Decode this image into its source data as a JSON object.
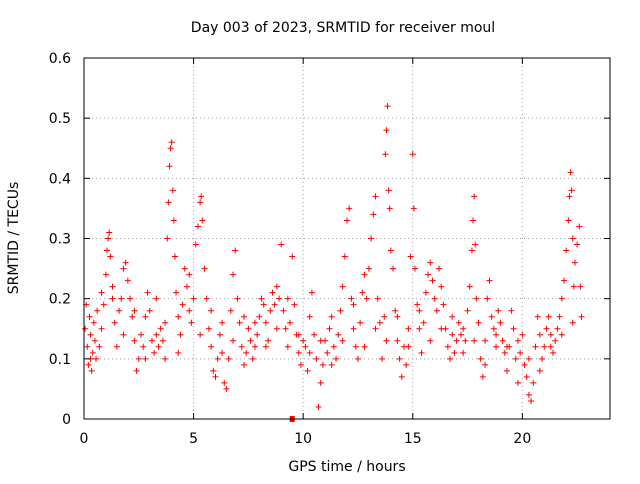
{
  "chart_data": {
    "type": "scatter",
    "title": "Day 003 of 2023, SRMTID for receiver moul",
    "xlabel": "GPS time / hours",
    "ylabel": "SRMTID / TECUs",
    "xlim": [
      0,
      24
    ],
    "ylim": [
      0,
      0.6
    ],
    "xticks": [
      0,
      5,
      10,
      15,
      20
    ],
    "xtick_labels": [
      "0",
      "5",
      "10",
      "15",
      "20"
    ],
    "yticks": [
      0,
      0.1,
      0.2,
      0.3,
      0.4,
      0.5,
      0.6
    ],
    "ytick_labels": [
      "0",
      "0.1",
      "0.2",
      "0.3",
      "0.4",
      "0.5",
      "0.6"
    ],
    "grid": true,
    "legend": "none",
    "marker": "plus",
    "color": "#ff0000",
    "series": [
      {
        "name": "SRMTID",
        "points": [
          [
            0.05,
            0.15
          ],
          [
            0.1,
            0.19
          ],
          [
            0.15,
            0.12
          ],
          [
            0.2,
            0.09
          ],
          [
            0.25,
            0.17
          ],
          [
            0.3,
            0.14
          ],
          [
            0.35,
            0.08
          ],
          [
            0.4,
            0.11
          ],
          [
            0.45,
            0.16
          ],
          [
            0.5,
            0.13
          ],
          [
            0.55,
            0.1
          ],
          [
            0.6,
            0.18
          ],
          [
            0.7,
            0.12
          ],
          [
            0.8,
            0.21
          ],
          [
            0.9,
            0.19
          ],
          [
            1.0,
            0.24
          ],
          [
            1.05,
            0.28
          ],
          [
            1.1,
            0.3
          ],
          [
            1.15,
            0.31
          ],
          [
            1.2,
            0.27
          ],
          [
            1.3,
            0.22
          ],
          [
            1.4,
            0.16
          ],
          [
            1.5,
            0.12
          ],
          [
            1.6,
            0.18
          ],
          [
            1.7,
            0.2
          ],
          [
            1.8,
            0.25
          ],
          [
            1.9,
            0.26
          ],
          [
            2.0,
            0.23
          ],
          [
            2.1,
            0.2
          ],
          [
            2.2,
            0.17
          ],
          [
            2.3,
            0.13
          ],
          [
            2.4,
            0.08
          ],
          [
            2.5,
            0.1
          ],
          [
            2.6,
            0.14
          ],
          [
            2.7,
            0.12
          ],
          [
            2.8,
            0.17
          ],
          [
            2.9,
            0.21
          ],
          [
            3.0,
            0.18
          ],
          [
            3.1,
            0.13
          ],
          [
            3.2,
            0.11
          ],
          [
            3.3,
            0.14
          ],
          [
            3.4,
            0.12
          ],
          [
            3.5,
            0.15
          ],
          [
            3.6,
            0.13
          ],
          [
            3.7,
            0.16
          ],
          [
            3.8,
            0.3
          ],
          [
            3.85,
            0.36
          ],
          [
            3.9,
            0.42
          ],
          [
            3.95,
            0.45
          ],
          [
            4.0,
            0.46
          ],
          [
            4.05,
            0.38
          ],
          [
            4.1,
            0.33
          ],
          [
            4.15,
            0.27
          ],
          [
            4.2,
            0.21
          ],
          [
            4.3,
            0.17
          ],
          [
            4.4,
            0.14
          ],
          [
            4.5,
            0.19
          ],
          [
            4.6,
            0.25
          ],
          [
            4.7,
            0.22
          ],
          [
            4.8,
            0.18
          ],
          [
            4.9,
            0.16
          ],
          [
            5.0,
            0.2
          ],
          [
            5.1,
            0.29
          ],
          [
            5.2,
            0.32
          ],
          [
            5.3,
            0.36
          ],
          [
            5.35,
            0.37
          ],
          [
            5.4,
            0.33
          ],
          [
            5.5,
            0.25
          ],
          [
            5.6,
            0.2
          ],
          [
            5.7,
            0.15
          ],
          [
            5.8,
            0.12
          ],
          [
            5.9,
            0.08
          ],
          [
            6.0,
            0.07
          ],
          [
            6.1,
            0.1
          ],
          [
            6.2,
            0.14
          ],
          [
            6.3,
            0.11
          ],
          [
            6.4,
            0.06
          ],
          [
            6.5,
            0.05
          ],
          [
            6.6,
            0.1
          ],
          [
            6.7,
            0.18
          ],
          [
            6.8,
            0.24
          ],
          [
            6.9,
            0.28
          ],
          [
            7.0,
            0.2
          ],
          [
            7.1,
            0.16
          ],
          [
            7.2,
            0.12
          ],
          [
            7.3,
            0.09
          ],
          [
            7.4,
            0.11
          ],
          [
            7.5,
            0.15
          ],
          [
            7.6,
            0.13
          ],
          [
            7.7,
            0.1
          ],
          [
            7.8,
            0.12
          ],
          [
            7.9,
            0.14
          ],
          [
            8.0,
            0.17
          ],
          [
            8.1,
            0.2
          ],
          [
            8.2,
            0.19
          ],
          [
            8.3,
            0.16
          ],
          [
            8.4,
            0.13
          ],
          [
            8.5,
            0.18
          ],
          [
            8.6,
            0.21
          ],
          [
            8.7,
            0.19
          ],
          [
            8.8,
            0.22
          ],
          [
            8.9,
            0.2
          ],
          [
            9.0,
            0.29
          ],
          [
            9.1,
            0.18
          ],
          [
            9.2,
            0.15
          ],
          [
            9.3,
            0.12
          ],
          [
            9.4,
            0.16
          ],
          [
            9.5,
            0.27
          ],
          [
            9.6,
            0.19
          ],
          [
            9.7,
            0.14
          ],
          [
            9.8,
            0.11
          ],
          [
            9.9,
            0.09
          ],
          [
            10.0,
            0.13
          ],
          [
            10.1,
            0.12
          ],
          [
            10.2,
            0.08
          ],
          [
            10.3,
            0.17
          ],
          [
            10.4,
            0.21
          ],
          [
            10.5,
            0.14
          ],
          [
            10.6,
            0.1
          ],
          [
            10.7,
            0.02
          ],
          [
            10.8,
            0.06
          ],
          [
            10.9,
            0.09
          ],
          [
            11.0,
            0.13
          ],
          [
            11.1,
            0.11
          ],
          [
            11.2,
            0.15
          ],
          [
            11.3,
            0.17
          ],
          [
            11.4,
            0.12
          ],
          [
            11.5,
            0.1
          ],
          [
            11.6,
            0.14
          ],
          [
            11.7,
            0.18
          ],
          [
            11.8,
            0.22
          ],
          [
            11.9,
            0.27
          ],
          [
            12.0,
            0.33
          ],
          [
            12.1,
            0.35
          ],
          [
            12.2,
            0.2
          ],
          [
            12.3,
            0.15
          ],
          [
            12.4,
            0.12
          ],
          [
            12.5,
            0.1
          ],
          [
            12.6,
            0.16
          ],
          [
            12.7,
            0.21
          ],
          [
            12.8,
            0.24
          ],
          [
            12.9,
            0.2
          ],
          [
            13.0,
            0.25
          ],
          [
            13.1,
            0.3
          ],
          [
            13.2,
            0.34
          ],
          [
            13.3,
            0.37
          ],
          [
            13.4,
            0.2
          ],
          [
            13.5,
            0.16
          ],
          [
            13.6,
            0.1
          ],
          [
            13.7,
            0.17
          ],
          [
            13.75,
            0.44
          ],
          [
            13.8,
            0.48
          ],
          [
            13.85,
            0.52
          ],
          [
            13.9,
            0.38
          ],
          [
            13.95,
            0.35
          ],
          [
            14.0,
            0.28
          ],
          [
            14.1,
            0.25
          ],
          [
            14.2,
            0.18
          ],
          [
            14.3,
            0.13
          ],
          [
            14.4,
            0.1
          ],
          [
            14.5,
            0.07
          ],
          [
            14.6,
            0.12
          ],
          [
            14.7,
            0.09
          ],
          [
            14.8,
            0.15
          ],
          [
            14.9,
            0.27
          ],
          [
            15.0,
            0.44
          ],
          [
            15.05,
            0.35
          ],
          [
            15.1,
            0.25
          ],
          [
            15.2,
            0.19
          ],
          [
            15.3,
            0.15
          ],
          [
            15.4,
            0.11
          ],
          [
            15.5,
            0.16
          ],
          [
            15.6,
            0.21
          ],
          [
            15.7,
            0.24
          ],
          [
            15.8,
            0.26
          ],
          [
            15.9,
            0.23
          ],
          [
            16.0,
            0.2
          ],
          [
            16.1,
            0.18
          ],
          [
            16.2,
            0.25
          ],
          [
            16.3,
            0.22
          ],
          [
            16.4,
            0.19
          ],
          [
            16.5,
            0.15
          ],
          [
            16.6,
            0.12
          ],
          [
            16.7,
            0.1
          ],
          [
            16.8,
            0.14
          ],
          [
            16.9,
            0.11
          ],
          [
            17.0,
            0.13
          ],
          [
            17.1,
            0.16
          ],
          [
            17.2,
            0.14
          ],
          [
            17.3,
            0.11
          ],
          [
            17.4,
            0.13
          ],
          [
            17.5,
            0.18
          ],
          [
            17.6,
            0.22
          ],
          [
            17.7,
            0.28
          ],
          [
            17.75,
            0.33
          ],
          [
            17.8,
            0.37
          ],
          [
            17.85,
            0.29
          ],
          [
            17.9,
            0.2
          ],
          [
            18.0,
            0.16
          ],
          [
            18.1,
            0.1
          ],
          [
            18.2,
            0.07
          ],
          [
            18.3,
            0.13
          ],
          [
            18.4,
            0.2
          ],
          [
            18.5,
            0.23
          ],
          [
            18.6,
            0.17
          ],
          [
            18.7,
            0.15
          ],
          [
            18.8,
            0.12
          ],
          [
            18.9,
            0.18
          ],
          [
            19.0,
            0.16
          ],
          [
            19.1,
            0.13
          ],
          [
            19.2,
            0.11
          ],
          [
            19.3,
            0.08
          ],
          [
            19.4,
            0.12
          ],
          [
            19.5,
            0.18
          ],
          [
            19.6,
            0.15
          ],
          [
            19.7,
            0.1
          ],
          [
            19.8,
            0.06
          ],
          [
            19.9,
            0.11
          ],
          [
            20.0,
            0.14
          ],
          [
            20.1,
            0.09
          ],
          [
            20.2,
            0.07
          ],
          [
            20.3,
            0.04
          ],
          [
            20.4,
            0.03
          ],
          [
            20.5,
            0.06
          ],
          [
            20.6,
            0.12
          ],
          [
            20.7,
            0.17
          ],
          [
            20.8,
            0.14
          ],
          [
            20.9,
            0.1
          ],
          [
            21.0,
            0.12
          ],
          [
            21.1,
            0.15
          ],
          [
            21.2,
            0.17
          ],
          [
            21.3,
            0.14
          ],
          [
            21.4,
            0.11
          ],
          [
            21.5,
            0.13
          ],
          [
            21.6,
            0.15
          ],
          [
            21.7,
            0.17
          ],
          [
            21.8,
            0.2
          ],
          [
            21.9,
            0.23
          ],
          [
            22.0,
            0.28
          ],
          [
            22.1,
            0.33
          ],
          [
            22.15,
            0.37
          ],
          [
            22.2,
            0.41
          ],
          [
            22.25,
            0.38
          ],
          [
            22.3,
            0.3
          ],
          [
            22.35,
            0.22
          ],
          [
            22.4,
            0.26
          ],
          [
            22.5,
            0.29
          ],
          [
            22.6,
            0.32
          ],
          [
            22.65,
            0.22
          ],
          [
            22.7,
            0.17
          ],
          [
            0.3,
            0.1
          ],
          [
            0.8,
            0.15
          ],
          [
            1.3,
            0.2
          ],
          [
            1.8,
            0.14
          ],
          [
            2.3,
            0.18
          ],
          [
            2.8,
            0.1
          ],
          [
            3.3,
            0.2
          ],
          [
            3.7,
            0.1
          ],
          [
            4.3,
            0.11
          ],
          [
            4.8,
            0.24
          ],
          [
            5.3,
            0.14
          ],
          [
            5.8,
            0.18
          ],
          [
            6.3,
            0.16
          ],
          [
            6.8,
            0.13
          ],
          [
            7.3,
            0.17
          ],
          [
            7.8,
            0.16
          ],
          [
            8.3,
            0.12
          ],
          [
            8.8,
            0.15
          ],
          [
            9.3,
            0.2
          ],
          [
            9.8,
            0.14
          ],
          [
            10.3,
            0.11
          ],
          [
            10.8,
            0.13
          ],
          [
            11.3,
            0.09
          ],
          [
            11.8,
            0.13
          ],
          [
            12.3,
            0.19
          ],
          [
            12.8,
            0.12
          ],
          [
            13.3,
            0.15
          ],
          [
            13.8,
            0.13
          ],
          [
            14.3,
            0.17
          ],
          [
            14.8,
            0.12
          ],
          [
            15.3,
            0.18
          ],
          [
            15.8,
            0.13
          ],
          [
            16.3,
            0.15
          ],
          [
            16.8,
            0.17
          ],
          [
            17.3,
            0.15
          ],
          [
            17.8,
            0.13
          ],
          [
            18.3,
            0.09
          ],
          [
            18.8,
            0.14
          ],
          [
            19.3,
            0.12
          ],
          [
            19.8,
            0.13
          ],
          [
            20.3,
            0.1
          ],
          [
            20.8,
            0.08
          ],
          [
            21.3,
            0.12
          ],
          [
            21.8,
            0.14
          ],
          [
            22.3,
            0.16
          ]
        ]
      }
    ],
    "outlier": [
      9.5,
      0
    ]
  }
}
